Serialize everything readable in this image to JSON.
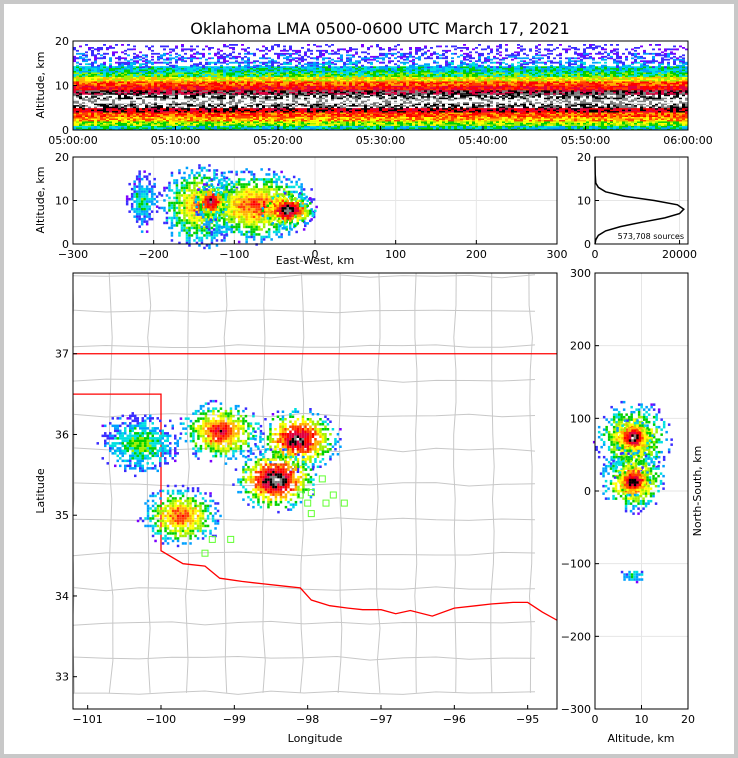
{
  "title": "Oklahoma LMA 0500-0600 UTC March 17, 2021",
  "colors": {
    "density_scale": [
      "#7b00ff",
      "#3a2cff",
      "#00a0ff",
      "#00e0e0",
      "#00d000",
      "#a0f000",
      "#ffff00",
      "#ffb000",
      "#ff4000",
      "#ff0000",
      "#e00040",
      "#000000",
      "#808080",
      "#ffffff"
    ],
    "state_border": "#ff0000",
    "county_lines": "#c8c8c8",
    "network_stations": "#60ff30",
    "profile_line": "#000000"
  },
  "chart_data": [
    {
      "name": "time-height",
      "type": "heatmap",
      "xlabel": "",
      "ylabel": "Altitude, km",
      "x_ticks": [
        "05:00:00",
        "05:10:00",
        "05:20:00",
        "05:30:00",
        "05:40:00",
        "05:50:00",
        "06:00:00"
      ],
      "ylim": [
        0,
        20
      ],
      "y_ticks": [
        "0",
        "10",
        "20"
      ],
      "density_by_altitude_km": [
        {
          "alt": 1,
          "level": 3
        },
        {
          "alt": 2,
          "level": 5
        },
        {
          "alt": 3,
          "level": 7
        },
        {
          "alt": 4,
          "level": 8
        },
        {
          "alt": 5,
          "level": 10
        },
        {
          "alt": 6,
          "level": 12
        },
        {
          "alt": 7,
          "level": 13
        },
        {
          "alt": 8,
          "level": 12
        },
        {
          "alt": 9,
          "level": 11
        },
        {
          "alt": 10,
          "level": 9
        },
        {
          "alt": 11,
          "level": 8
        },
        {
          "alt": 12,
          "level": 6
        },
        {
          "alt": 13,
          "level": 4
        },
        {
          "alt": 14,
          "level": 3
        },
        {
          "alt": 15,
          "level": 2
        },
        {
          "alt": 16,
          "level": 1
        },
        {
          "alt": 17,
          "level": 1
        },
        {
          "alt": 18,
          "level": 0
        },
        {
          "alt": 19,
          "level": 0
        }
      ]
    },
    {
      "name": "east-west-altitude",
      "type": "heatmap",
      "xlabel": "East-West, km",
      "ylabel": "Altitude, km",
      "xlim": [
        -300,
        300
      ],
      "x_ticks": [
        "−300",
        "−200",
        "−100",
        "0",
        "100",
        "200",
        "300"
      ],
      "ylim": [
        0,
        20
      ],
      "y_ticks": [
        "0",
        "10",
        "20"
      ],
      "blobs": [
        {
          "x": -215,
          "y": 10,
          "rx": 15,
          "ry": 5,
          "level": 4
        },
        {
          "x": -145,
          "y": 9,
          "rx": 35,
          "ry": 7,
          "level": 8
        },
        {
          "x": -75,
          "y": 9,
          "rx": 55,
          "ry": 6,
          "level": 9
        },
        {
          "x": -130,
          "y": 10,
          "rx": 15,
          "ry": 3,
          "level": 12
        },
        {
          "x": -35,
          "y": 8,
          "rx": 25,
          "ry": 3,
          "level": 13
        }
      ]
    },
    {
      "name": "altitude-histogram",
      "type": "line",
      "xlim": [
        0,
        22000
      ],
      "x_ticks": [
        "0",
        "20000"
      ],
      "ylim": [
        0,
        20
      ],
      "y_ticks": [
        "0",
        "10",
        "20"
      ],
      "annotation": "573,708 sources",
      "profile": [
        {
          "alt": 0,
          "n": 0
        },
        {
          "alt": 1,
          "n": 200
        },
        {
          "alt": 2,
          "n": 800
        },
        {
          "alt": 3,
          "n": 2500
        },
        {
          "alt": 4,
          "n": 6000
        },
        {
          "alt": 5,
          "n": 11000
        },
        {
          "alt": 6,
          "n": 16500
        },
        {
          "alt": 7,
          "n": 20000
        },
        {
          "alt": 8,
          "n": 21000
        },
        {
          "alt": 9,
          "n": 19500
        },
        {
          "alt": 10,
          "n": 14000
        },
        {
          "alt": 11,
          "n": 7000
        },
        {
          "alt": 12,
          "n": 2500
        },
        {
          "alt": 13,
          "n": 800
        },
        {
          "alt": 14,
          "n": 200
        },
        {
          "alt": 16,
          "n": 40
        },
        {
          "alt": 20,
          "n": 0
        }
      ]
    },
    {
      "name": "plan-view-map",
      "type": "heatmap",
      "xlabel": "Longitude",
      "ylabel": "Latitude",
      "xlim": [
        -101.2,
        -94.6
      ],
      "x_ticks": [
        "−101",
        "−100",
        "−99",
        "−98",
        "−97",
        "−96",
        "−95"
      ],
      "ylim": [
        32.6,
        38
      ],
      "y_ticks": [
        "33",
        "34",
        "35",
        "36",
        "37"
      ],
      "storms": [
        {
          "lon": -100.3,
          "lat": 35.9,
          "level": 5
        },
        {
          "lon": -99.2,
          "lat": 36.05,
          "level": 10
        },
        {
          "lon": -99.75,
          "lat": 35.0,
          "level": 9
        },
        {
          "lon": -98.15,
          "lat": 35.95,
          "level": 12
        },
        {
          "lon": -98.45,
          "lat": 35.45,
          "level": 13
        }
      ],
      "stations": [
        {
          "lon": -97.8,
          "lat": 35.45
        },
        {
          "lon": -98.1,
          "lat": 35.25
        },
        {
          "lon": -97.95,
          "lat": 35.28
        },
        {
          "lon": -97.65,
          "lat": 35.25
        },
        {
          "lon": -98.0,
          "lat": 35.15
        },
        {
          "lon": -97.75,
          "lat": 35.15
        },
        {
          "lon": -97.5,
          "lat": 35.15
        },
        {
          "lon": -97.95,
          "lat": 35.02
        },
        {
          "lon": -99.3,
          "lat": 34.7
        },
        {
          "lon": -99.05,
          "lat": 34.7
        },
        {
          "lon": -99.4,
          "lat": 34.53
        }
      ]
    },
    {
      "name": "altitude-north-south",
      "type": "heatmap",
      "xlabel": "Altitude, km",
      "ylabel": "North-South, km",
      "xlim": [
        0,
        20
      ],
      "x_ticks": [
        "0",
        "10",
        "20"
      ],
      "ylim": [
        -300,
        300
      ],
      "y_ticks": [
        "−300",
        "−200",
        "−100",
        "0",
        "100",
        "200",
        "300"
      ],
      "blobs": [
        {
          "x": 8,
          "y": 75,
          "rx": 6,
          "ry": 35,
          "level": 9
        },
        {
          "x": 8,
          "y": 15,
          "rx": 5,
          "ry": 30,
          "level": 10
        },
        {
          "x": 8,
          "y": 75,
          "rx": 3,
          "ry": 18,
          "level": 13
        },
        {
          "x": 8,
          "y": 15,
          "rx": 3,
          "ry": 15,
          "level": 13
        },
        {
          "x": 8,
          "y": -115,
          "rx": 2,
          "ry": 8,
          "level": 4
        }
      ]
    }
  ]
}
